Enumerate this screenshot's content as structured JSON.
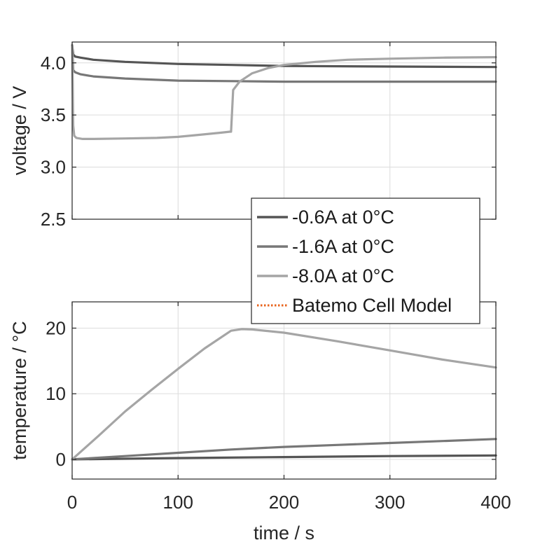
{
  "chart_data": [
    {
      "type": "line",
      "xlabel": "",
      "ylabel": "voltage / V",
      "xlim": [
        0,
        400
      ],
      "ylim": [
        2.5,
        4.2
      ],
      "xticks": [
        0,
        100,
        200,
        300,
        400
      ],
      "xtick_labels": [
        "",
        "",
        "",
        "",
        ""
      ],
      "yticks": [
        2.5,
        3.0,
        3.5,
        4.0
      ],
      "ytick_labels": [
        "2.5",
        "3.0",
        "3.5",
        "4.0"
      ],
      "grid": true,
      "series": [
        {
          "name": "-0.6A at 0°C",
          "color": "#555555",
          "x": [
            0,
            1,
            3,
            8,
            20,
            50,
            100,
            150,
            200,
            300,
            400
          ],
          "y": [
            4.17,
            4.08,
            4.06,
            4.05,
            4.03,
            4.01,
            3.99,
            3.98,
            3.97,
            3.965,
            3.96
          ]
        },
        {
          "name": "-1.6A at 0°C",
          "color": "#777777",
          "x": [
            0,
            1,
            3,
            8,
            20,
            50,
            100,
            150,
            200,
            300,
            400
          ],
          "y": [
            4.17,
            3.93,
            3.91,
            3.89,
            3.87,
            3.85,
            3.83,
            3.825,
            3.82,
            3.82,
            3.82
          ]
        },
        {
          "name": "-8.0A at 0°C",
          "color": "#a5a5a5",
          "x": [
            0,
            0.5,
            1,
            2,
            4,
            10,
            20,
            50,
            80,
            100,
            120,
            140,
            149,
            150,
            152,
            158,
            170,
            185,
            200,
            230,
            260,
            300,
            350,
            400
          ],
          "y": [
            4.17,
            3.8,
            3.4,
            3.3,
            3.28,
            3.27,
            3.27,
            3.275,
            3.28,
            3.29,
            3.31,
            3.33,
            3.34,
            3.34,
            3.74,
            3.82,
            3.9,
            3.95,
            3.98,
            4.01,
            4.03,
            4.04,
            4.05,
            4.055
          ]
        }
      ]
    },
    {
      "type": "line",
      "xlabel": "time / s",
      "ylabel": "temperature / °C",
      "xlim": [
        0,
        400
      ],
      "ylim": [
        -3,
        24
      ],
      "xticks": [
        0,
        100,
        200,
        300,
        400
      ],
      "xtick_labels": [
        "0",
        "100",
        "200",
        "300",
        "400"
      ],
      "yticks": [
        0,
        10,
        20
      ],
      "ytick_labels": [
        "0",
        "10",
        "20"
      ],
      "grid": true,
      "series": [
        {
          "name": "-0.6A at 0°C",
          "color": "#555555",
          "x": [
            0,
            100,
            200,
            300,
            400
          ],
          "y": [
            0,
            0.2,
            0.35,
            0.5,
            0.6
          ]
        },
        {
          "name": "-1.6A at 0°C",
          "color": "#777777",
          "x": [
            0,
            50,
            100,
            150,
            200,
            250,
            300,
            350,
            400
          ],
          "y": [
            0,
            0.5,
            1.0,
            1.5,
            1.9,
            2.2,
            2.5,
            2.8,
            3.1
          ]
        },
        {
          "name": "-8.0A at 0°C",
          "color": "#a5a5a5",
          "x": [
            0,
            25,
            50,
            75,
            100,
            125,
            150,
            160,
            170,
            200,
            250,
            300,
            350,
            400
          ],
          "y": [
            0,
            3.6,
            7.3,
            10.6,
            13.8,
            16.9,
            19.6,
            19.85,
            19.8,
            19.3,
            18.0,
            16.6,
            15.2,
            14.0
          ]
        }
      ]
    }
  ],
  "legend": {
    "placement": "center-right",
    "items": [
      {
        "label": "-0.6A at 0°C",
        "color": "#555555",
        "style": "solid"
      },
      {
        "label": "-1.6A at 0°C",
        "color": "#777777",
        "style": "solid"
      },
      {
        "label": "-8.0A at 0°C",
        "color": "#a5a5a5",
        "style": "solid"
      },
      {
        "label": "Batemo Cell Model",
        "color": "#e8641e",
        "style": "dotted"
      }
    ]
  }
}
